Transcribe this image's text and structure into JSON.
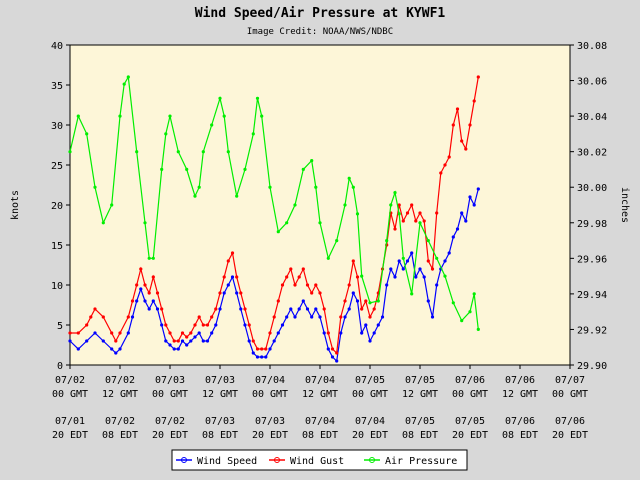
{
  "chart_data": {
    "type": "line",
    "title": "Wind Speed/Air Pressure at KYWF1",
    "subtitle": "Image Credit: NOAA/NWS/NDBC",
    "ylabel_left": "knots",
    "ylabel_right": "inches",
    "ylim_left": [
      0,
      40
    ],
    "ylim_right": [
      29.9,
      30.08
    ],
    "yticks_left": [
      "0",
      "5",
      "10",
      "15",
      "20",
      "25",
      "30",
      "35",
      "40"
    ],
    "yticks_right": [
      "29.90",
      "29.92",
      "29.94",
      "29.96",
      "29.98",
      "30.00",
      "30.02",
      "30.04",
      "30.06",
      "30.08"
    ],
    "x_range_hours": [
      0,
      120
    ],
    "xticks_gmt": [
      [
        "07/02",
        "00 GMT"
      ],
      [
        "07/02",
        "12 GMT"
      ],
      [
        "07/03",
        "00 GMT"
      ],
      [
        "07/03",
        "12 GMT"
      ],
      [
        "07/04",
        "00 GMT"
      ],
      [
        "07/04",
        "12 GMT"
      ],
      [
        "07/05",
        "00 GMT"
      ],
      [
        "07/05",
        "12 GMT"
      ],
      [
        "07/06",
        "00 GMT"
      ],
      [
        "07/06",
        "12 GMT"
      ],
      [
        "07/07",
        "00 GMT"
      ]
    ],
    "xticks_local": [
      [
        "07/01",
        "20 EDT"
      ],
      [
        "07/02",
        "08 EDT"
      ],
      [
        "07/02",
        "20 EDT"
      ],
      [
        "07/03",
        "08 EDT"
      ],
      [
        "07/03",
        "20 EDT"
      ],
      [
        "07/04",
        "08 EDT"
      ],
      [
        "07/04",
        "20 EDT"
      ],
      [
        "07/05",
        "08 EDT"
      ],
      [
        "07/05",
        "20 EDT"
      ],
      [
        "07/06",
        "08 EDT"
      ],
      [
        "07/06",
        "20 EDT"
      ]
    ],
    "grid": false,
    "legend_position": "bottom-center",
    "series": [
      {
        "name": "Wind Speed",
        "color": "#0000ff",
        "axis": "left",
        "points": [
          [
            0,
            3
          ],
          [
            2,
            2
          ],
          [
            4,
            3
          ],
          [
            6,
            4
          ],
          [
            8,
            3
          ],
          [
            10,
            2
          ],
          [
            11,
            1.5
          ],
          [
            12,
            2
          ],
          [
            14,
            4
          ],
          [
            15,
            6
          ],
          [
            16,
            8
          ],
          [
            17,
            9.5
          ],
          [
            18,
            8
          ],
          [
            19,
            7
          ],
          [
            20,
            8
          ],
          [
            21,
            7
          ],
          [
            22,
            5
          ],
          [
            23,
            3
          ],
          [
            24,
            2.5
          ],
          [
            25,
            2
          ],
          [
            26,
            2
          ],
          [
            27,
            3
          ],
          [
            28,
            2.5
          ],
          [
            29,
            3
          ],
          [
            30,
            3.5
          ],
          [
            31,
            4
          ],
          [
            32,
            3
          ],
          [
            33,
            3
          ],
          [
            34,
            4
          ],
          [
            35,
            5
          ],
          [
            36,
            7
          ],
          [
            37,
            9
          ],
          [
            38,
            10
          ],
          [
            39,
            11
          ],
          [
            40,
            9
          ],
          [
            41,
            7
          ],
          [
            42,
            5
          ],
          [
            43,
            3
          ],
          [
            44,
            1.5
          ],
          [
            45,
            1
          ],
          [
            46,
            1
          ],
          [
            47,
            1
          ],
          [
            48,
            2
          ],
          [
            49,
            3
          ],
          [
            50,
            4
          ],
          [
            51,
            5
          ],
          [
            52,
            6
          ],
          [
            53,
            7
          ],
          [
            54,
            6
          ],
          [
            55,
            7
          ],
          [
            56,
            8
          ],
          [
            57,
            7
          ],
          [
            58,
            6
          ],
          [
            59,
            7
          ],
          [
            60,
            6
          ],
          [
            61,
            4
          ],
          [
            62,
            2
          ],
          [
            63,
            1
          ],
          [
            64,
            0.5
          ],
          [
            65,
            4
          ],
          [
            66,
            6
          ],
          [
            67,
            7
          ],
          [
            68,
            9
          ],
          [
            69,
            8
          ],
          [
            70,
            4
          ],
          [
            71,
            5
          ],
          [
            72,
            3
          ],
          [
            73,
            4
          ],
          [
            74,
            5
          ],
          [
            75,
            6
          ],
          [
            76,
            10
          ],
          [
            77,
            12
          ],
          [
            78,
            11
          ],
          [
            79,
            13
          ],
          [
            80,
            12
          ],
          [
            81,
            13
          ],
          [
            82,
            14
          ],
          [
            83,
            11
          ],
          [
            84,
            12
          ],
          [
            85,
            11
          ],
          [
            86,
            8
          ],
          [
            87,
            6
          ],
          [
            88,
            10
          ],
          [
            89,
            12
          ],
          [
            90,
            13
          ],
          [
            91,
            14
          ],
          [
            92,
            16
          ],
          [
            93,
            17
          ],
          [
            94,
            19
          ],
          [
            95,
            18
          ],
          [
            96,
            21
          ],
          [
            97,
            20
          ],
          [
            98,
            22
          ]
        ]
      },
      {
        "name": "Wind Gust",
        "color": "#ff0000",
        "axis": "left",
        "points": [
          [
            0,
            4
          ],
          [
            2,
            4
          ],
          [
            4,
            5
          ],
          [
            5,
            6
          ],
          [
            6,
            7
          ],
          [
            8,
            6
          ],
          [
            10,
            4
          ],
          [
            11,
            3
          ],
          [
            12,
            4
          ],
          [
            14,
            6
          ],
          [
            15,
            8
          ],
          [
            16,
            10
          ],
          [
            17,
            12
          ],
          [
            18,
            10
          ],
          [
            19,
            9
          ],
          [
            20,
            11
          ],
          [
            21,
            9
          ],
          [
            22,
            7
          ],
          [
            23,
            5
          ],
          [
            24,
            4
          ],
          [
            25,
            3
          ],
          [
            26,
            3
          ],
          [
            27,
            4
          ],
          [
            28,
            3.5
          ],
          [
            29,
            4
          ],
          [
            30,
            5
          ],
          [
            31,
            6
          ],
          [
            32,
            5
          ],
          [
            33,
            5
          ],
          [
            34,
            6
          ],
          [
            35,
            7
          ],
          [
            36,
            9
          ],
          [
            37,
            11
          ],
          [
            38,
            13
          ],
          [
            39,
            14
          ],
          [
            40,
            11
          ],
          [
            41,
            9
          ],
          [
            42,
            7
          ],
          [
            43,
            5
          ],
          [
            44,
            3
          ],
          [
            45,
            2
          ],
          [
            46,
            2
          ],
          [
            47,
            2
          ],
          [
            48,
            4
          ],
          [
            49,
            6
          ],
          [
            50,
            8
          ],
          [
            51,
            10
          ],
          [
            52,
            11
          ],
          [
            53,
            12
          ],
          [
            54,
            10
          ],
          [
            55,
            11
          ],
          [
            56,
            12
          ],
          [
            57,
            10
          ],
          [
            58,
            9
          ],
          [
            59,
            10
          ],
          [
            60,
            9
          ],
          [
            61,
            7
          ],
          [
            62,
            4
          ],
          [
            63,
            2
          ],
          [
            64,
            1.5
          ],
          [
            65,
            6
          ],
          [
            66,
            8
          ],
          [
            67,
            10
          ],
          [
            68,
            13
          ],
          [
            69,
            11
          ],
          [
            70,
            7
          ],
          [
            71,
            8
          ],
          [
            72,
            6
          ],
          [
            73,
            7
          ],
          [
            74,
            9
          ],
          [
            75,
            12
          ],
          [
            76,
            15
          ],
          [
            77,
            19
          ],
          [
            78,
            17
          ],
          [
            79,
            20
          ],
          [
            80,
            18
          ],
          [
            81,
            19
          ],
          [
            82,
            20
          ],
          [
            83,
            18
          ],
          [
            84,
            19
          ],
          [
            85,
            18
          ],
          [
            86,
            13
          ],
          [
            87,
            12
          ],
          [
            88,
            19
          ],
          [
            89,
            24
          ],
          [
            90,
            25
          ],
          [
            91,
            26
          ],
          [
            92,
            30
          ],
          [
            93,
            32
          ],
          [
            94,
            28
          ],
          [
            95,
            27
          ],
          [
            96,
            30
          ],
          [
            97,
            33
          ],
          [
            98,
            36
          ]
        ]
      },
      {
        "name": "Air Pressure",
        "color": "#00ee00",
        "axis": "right",
        "points": [
          [
            0,
            30.02
          ],
          [
            2,
            30.04
          ],
          [
            4,
            30.03
          ],
          [
            6,
            30.0
          ],
          [
            8,
            29.98
          ],
          [
            10,
            29.99
          ],
          [
            12,
            30.04
          ],
          [
            13,
            30.058
          ],
          [
            14,
            30.062
          ],
          [
            16,
            30.02
          ],
          [
            18,
            29.98
          ],
          [
            19,
            29.96
          ],
          [
            20,
            29.96
          ],
          [
            22,
            30.01
          ],
          [
            23,
            30.03
          ],
          [
            24,
            30.04
          ],
          [
            26,
            30.02
          ],
          [
            28,
            30.01
          ],
          [
            30,
            29.995
          ],
          [
            31,
            30.0
          ],
          [
            32,
            30.02
          ],
          [
            34,
            30.035
          ],
          [
            36,
            30.05
          ],
          [
            37,
            30.04
          ],
          [
            38,
            30.02
          ],
          [
            40,
            29.995
          ],
          [
            42,
            30.01
          ],
          [
            44,
            30.03
          ],
          [
            45,
            30.05
          ],
          [
            46,
            30.04
          ],
          [
            48,
            30.0
          ],
          [
            50,
            29.975
          ],
          [
            52,
            29.98
          ],
          [
            54,
            29.99
          ],
          [
            56,
            30.01
          ],
          [
            58,
            30.015
          ],
          [
            59,
            30.0
          ],
          [
            60,
            29.98
          ],
          [
            62,
            29.96
          ],
          [
            64,
            29.97
          ],
          [
            66,
            29.99
          ],
          [
            67,
            30.005
          ],
          [
            68,
            30.0
          ],
          [
            69,
            29.985
          ],
          [
            70,
            29.95
          ],
          [
            72,
            29.935
          ],
          [
            74,
            29.936
          ],
          [
            76,
            29.97
          ],
          [
            77,
            29.99
          ],
          [
            78,
            29.997
          ],
          [
            79,
            29.985
          ],
          [
            80,
            29.96
          ],
          [
            82,
            29.94
          ],
          [
            84,
            29.98
          ],
          [
            86,
            29.97
          ],
          [
            88,
            29.96
          ],
          [
            90,
            29.95
          ],
          [
            92,
            29.935
          ],
          [
            94,
            29.925
          ],
          [
            96,
            29.93
          ],
          [
            97,
            29.94
          ],
          [
            98,
            29.92
          ]
        ]
      }
    ]
  }
}
